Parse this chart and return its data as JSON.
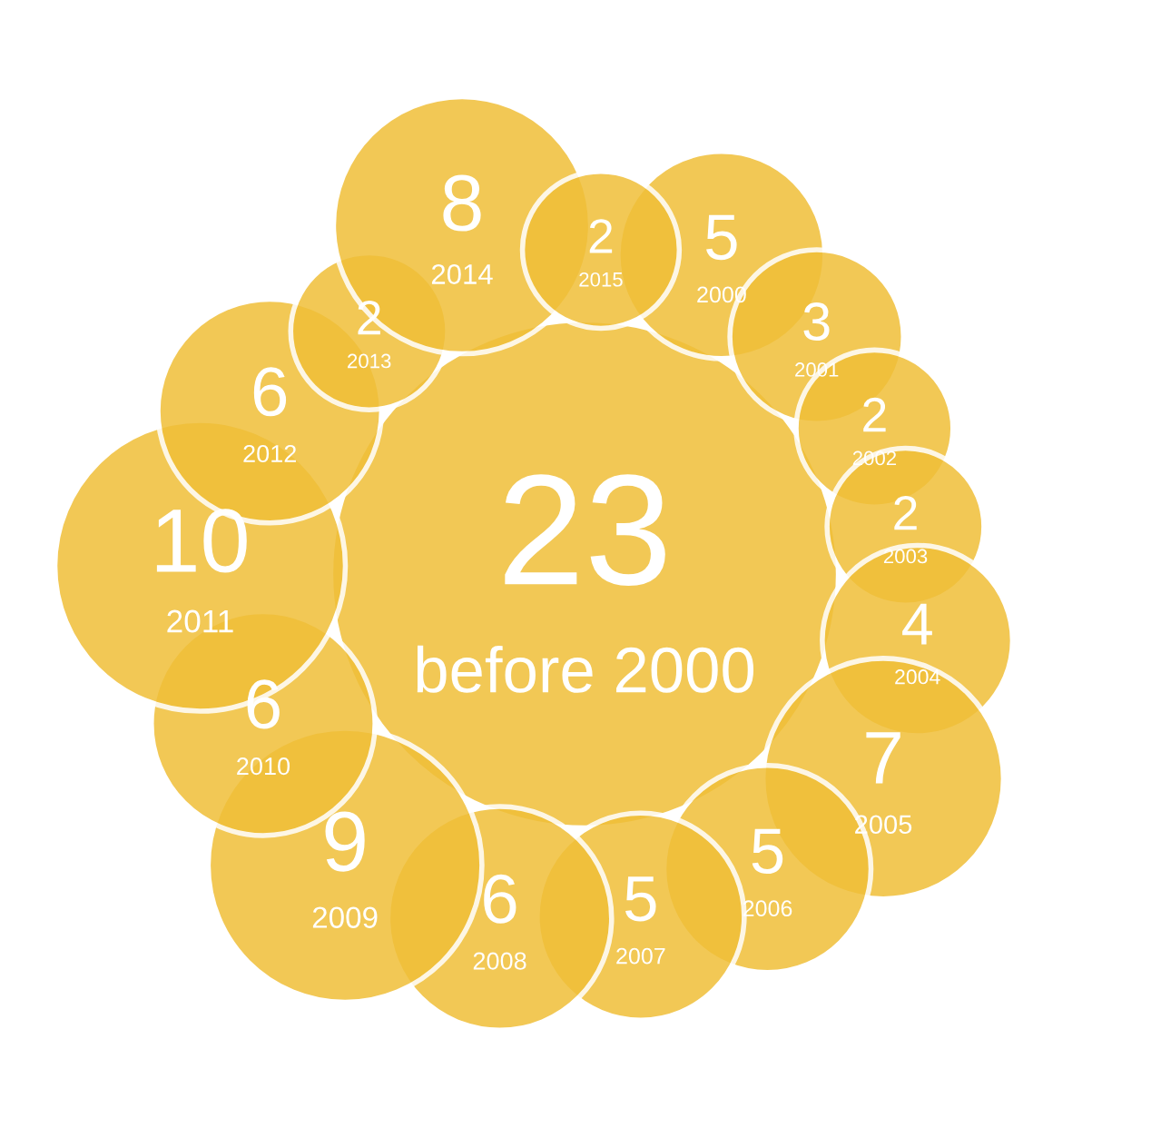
{
  "chart_data": {
    "type": "other",
    "categories": [
      "before 2000",
      "2000",
      "2001",
      "2002",
      "2003",
      "2004",
      "2005",
      "2006",
      "2007",
      "2008",
      "2009",
      "2010",
      "2011",
      "2012",
      "2013",
      "2014",
      "2015"
    ],
    "values": [
      23,
      5,
      3,
      2,
      2,
      4,
      7,
      5,
      5,
      6,
      9,
      6,
      10,
      6,
      2,
      8,
      2
    ],
    "color": "#f0bf38",
    "data_labels": true
  }
}
